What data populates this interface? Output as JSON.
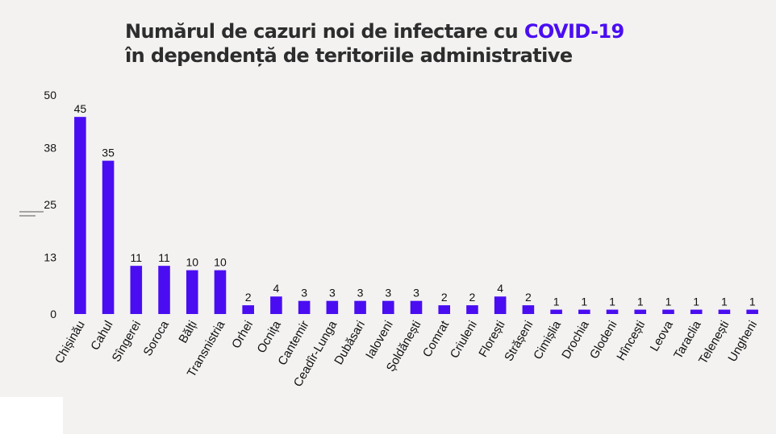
{
  "title": {
    "line1_text": "Numărul de cazuri noi de infectare cu ",
    "line1_accent": "COVID-19",
    "line2": "în dependență de teritoriile administrative"
  },
  "colors": {
    "bar": "#4a0df2",
    "accent": "#4a0df2",
    "background": "#f3f2f1"
  },
  "chart_data": {
    "type": "bar",
    "categories": [
      "Chișinău",
      "Cahul",
      "Sîngerei",
      "Soroca",
      "Bălți",
      "Transnistria",
      "Orhei",
      "Ocnița",
      "Cantemir",
      "Ceadîr-Lunga",
      "Dubăsari",
      "Ialoveni",
      "Șoldănești",
      "Comrat",
      "Criuleni",
      "Florești",
      "Strășeni",
      "Cimișlia",
      "Drochia",
      "Glodeni",
      "Hîncești",
      "Leova",
      "Taraclia",
      "Telenești",
      "Ungheni"
    ],
    "values": [
      45,
      35,
      11,
      11,
      10,
      10,
      2,
      4,
      3,
      3,
      3,
      3,
      3,
      2,
      2,
      4,
      2,
      1,
      1,
      1,
      1,
      1,
      1,
      1,
      1
    ],
    "yticks": [
      "0",
      "13",
      "25",
      "38",
      "50"
    ],
    "ylim": [
      0,
      50
    ],
    "grid": false,
    "data_labels": true
  }
}
